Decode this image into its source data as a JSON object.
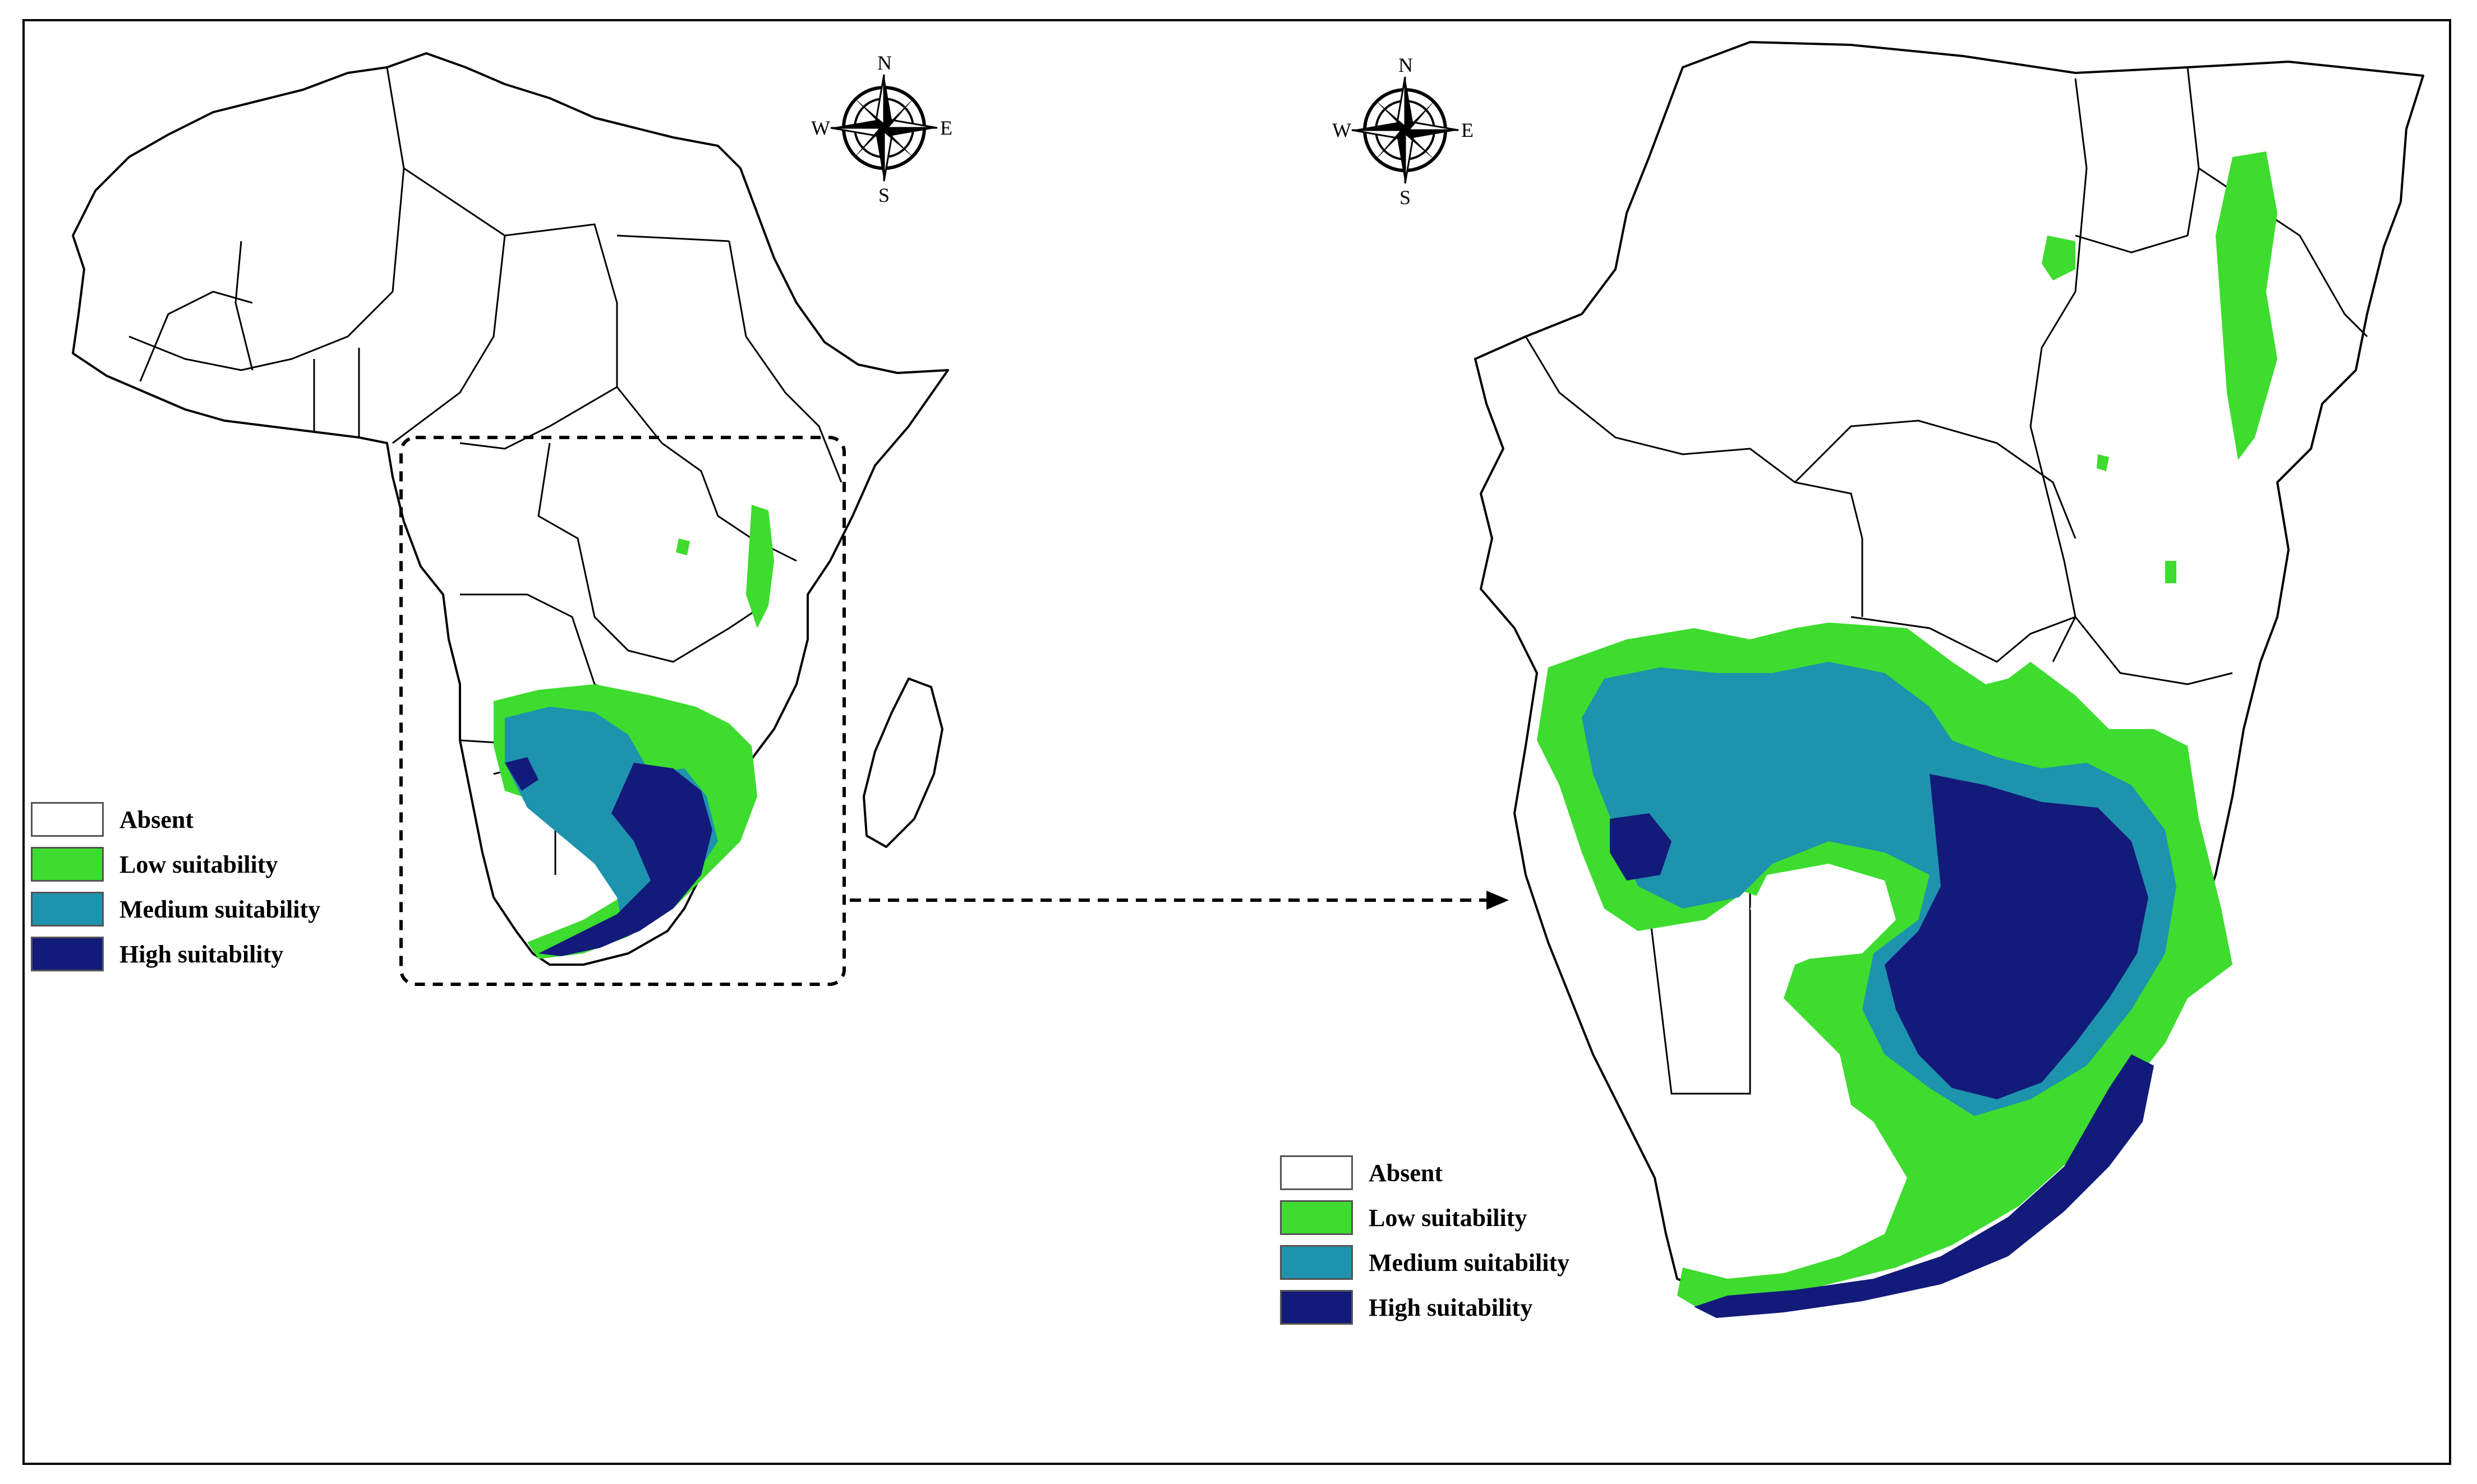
{
  "compass": {
    "north": "N",
    "south": "S",
    "east": "E",
    "west": "W"
  },
  "legend": {
    "items": [
      {
        "label": "Absent",
        "color": "#ffffff"
      },
      {
        "label": "Low suitability",
        "color": "#3ddc2f"
      },
      {
        "label": "Medium suitability",
        "color": "#1e93ad"
      },
      {
        "label": "High suitability",
        "color": "#121a7a"
      }
    ]
  },
  "colors": {
    "outline": "#000000",
    "absent": "#ffffff",
    "low": "#3ddc2f",
    "medium": "#1e93ad",
    "high": "#121a7a"
  }
}
